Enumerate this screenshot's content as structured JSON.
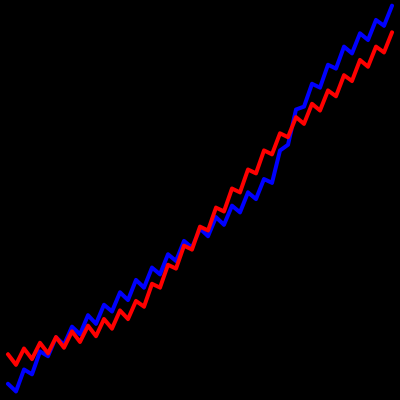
{
  "chart_data": {
    "type": "line",
    "x": [
      8,
      16,
      24,
      32,
      40,
      48,
      56,
      64,
      72,
      80,
      88,
      96,
      104,
      112,
      120,
      128,
      136,
      144,
      152,
      160,
      168,
      176,
      184,
      192,
      200,
      208,
      216,
      224,
      232,
      240,
      248,
      256,
      264,
      272,
      280,
      288,
      296,
      304,
      312,
      320,
      328,
      336,
      344,
      352,
      360,
      368,
      376,
      384,
      392
    ],
    "series": [
      {
        "color": "#0000ff",
        "values": [
          7,
          -1,
          22,
          17,
          41,
          36,
          56,
          48,
          67,
          59,
          79,
          70,
          90,
          83,
          103,
          95,
          116,
          108,
          129,
          122,
          143,
          136,
          157,
          150,
          170,
          162,
          182,
          174,
          194,
          187,
          208,
          201,
          222,
          218,
          252,
          258,
          295,
          298,
          322,
          318,
          342,
          338,
          361,
          354,
          375,
          368,
          389,
          383,
          404
        ]
      },
      {
        "color": "#ff0000",
        "values": [
          38,
          27,
          44,
          33,
          50,
          39,
          56,
          45,
          62,
          51,
          68,
          57,
          75,
          65,
          84,
          75,
          94,
          88,
          112,
          108,
          132,
          128,
          152,
          148,
          172,
          168,
          192,
          188,
          212,
          208,
          232,
          228,
          252,
          248,
          270,
          266,
          287,
          280,
          301,
          294,
          315,
          309,
          331,
          325,
          347,
          340,
          361,
          355,
          376
        ]
      }
    ],
    "xlim": [
      0,
      400
    ],
    "ylim": [
      -10,
      410
    ],
    "background": "#000000"
  }
}
